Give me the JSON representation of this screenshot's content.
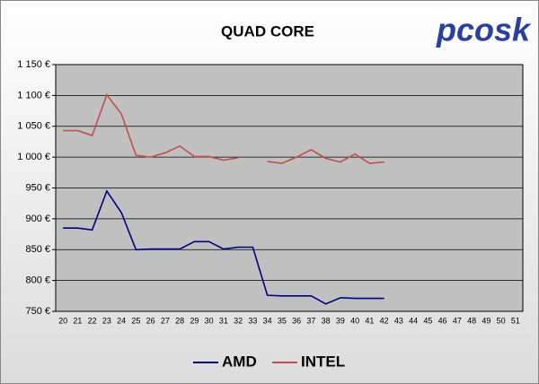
{
  "chart_data": {
    "type": "line",
    "title": "QUAD CORE",
    "logo": "pcosk",
    "categories": [
      "20",
      "21",
      "22",
      "23",
      "24",
      "25",
      "26",
      "27",
      "28",
      "29",
      "30",
      "31",
      "32",
      "33",
      "34",
      "35",
      "36",
      "37",
      "38",
      "39",
      "40",
      "41",
      "42",
      "43",
      "44",
      "45",
      "46",
      "47",
      "48",
      "49",
      "50",
      "51"
    ],
    "series": [
      {
        "name": "AMD",
        "color": "#000080",
        "values": [
          885,
          885,
          882,
          945,
          910,
          850,
          851,
          851,
          851,
          863,
          863,
          851,
          854,
          854,
          776,
          775,
          775,
          775,
          762,
          772,
          771,
          771,
          771,
          null,
          null,
          null,
          null,
          null,
          null,
          null,
          null,
          null
        ]
      },
      {
        "name": "INTEL",
        "color": "#c0504d",
        "values": [
          1043,
          1043,
          1035,
          1101,
          1070,
          1003,
          1000,
          1007,
          1018,
          1001,
          1001,
          995,
          999,
          null,
          993,
          990,
          1000,
          1012,
          998,
          992,
          1005,
          990,
          992,
          null,
          null,
          null,
          null,
          null,
          null,
          null,
          null,
          null
        ]
      }
    ],
    "ylim": [
      750,
      1150
    ],
    "yticks": [
      {
        "value": 750,
        "label": "750 €"
      },
      {
        "value": 800,
        "label": "800 €"
      },
      {
        "value": 850,
        "label": "850 €"
      },
      {
        "value": 900,
        "label": "900 €"
      },
      {
        "value": 950,
        "label": "950 €"
      },
      {
        "value": 1000,
        "label": "1 000 €"
      },
      {
        "value": 1050,
        "label": "1 050 €"
      },
      {
        "value": 1100,
        "label": "1 100 €"
      },
      {
        "value": 1150,
        "label": "1 150 €"
      }
    ],
    "grid": true,
    "legend": "bottom"
  }
}
